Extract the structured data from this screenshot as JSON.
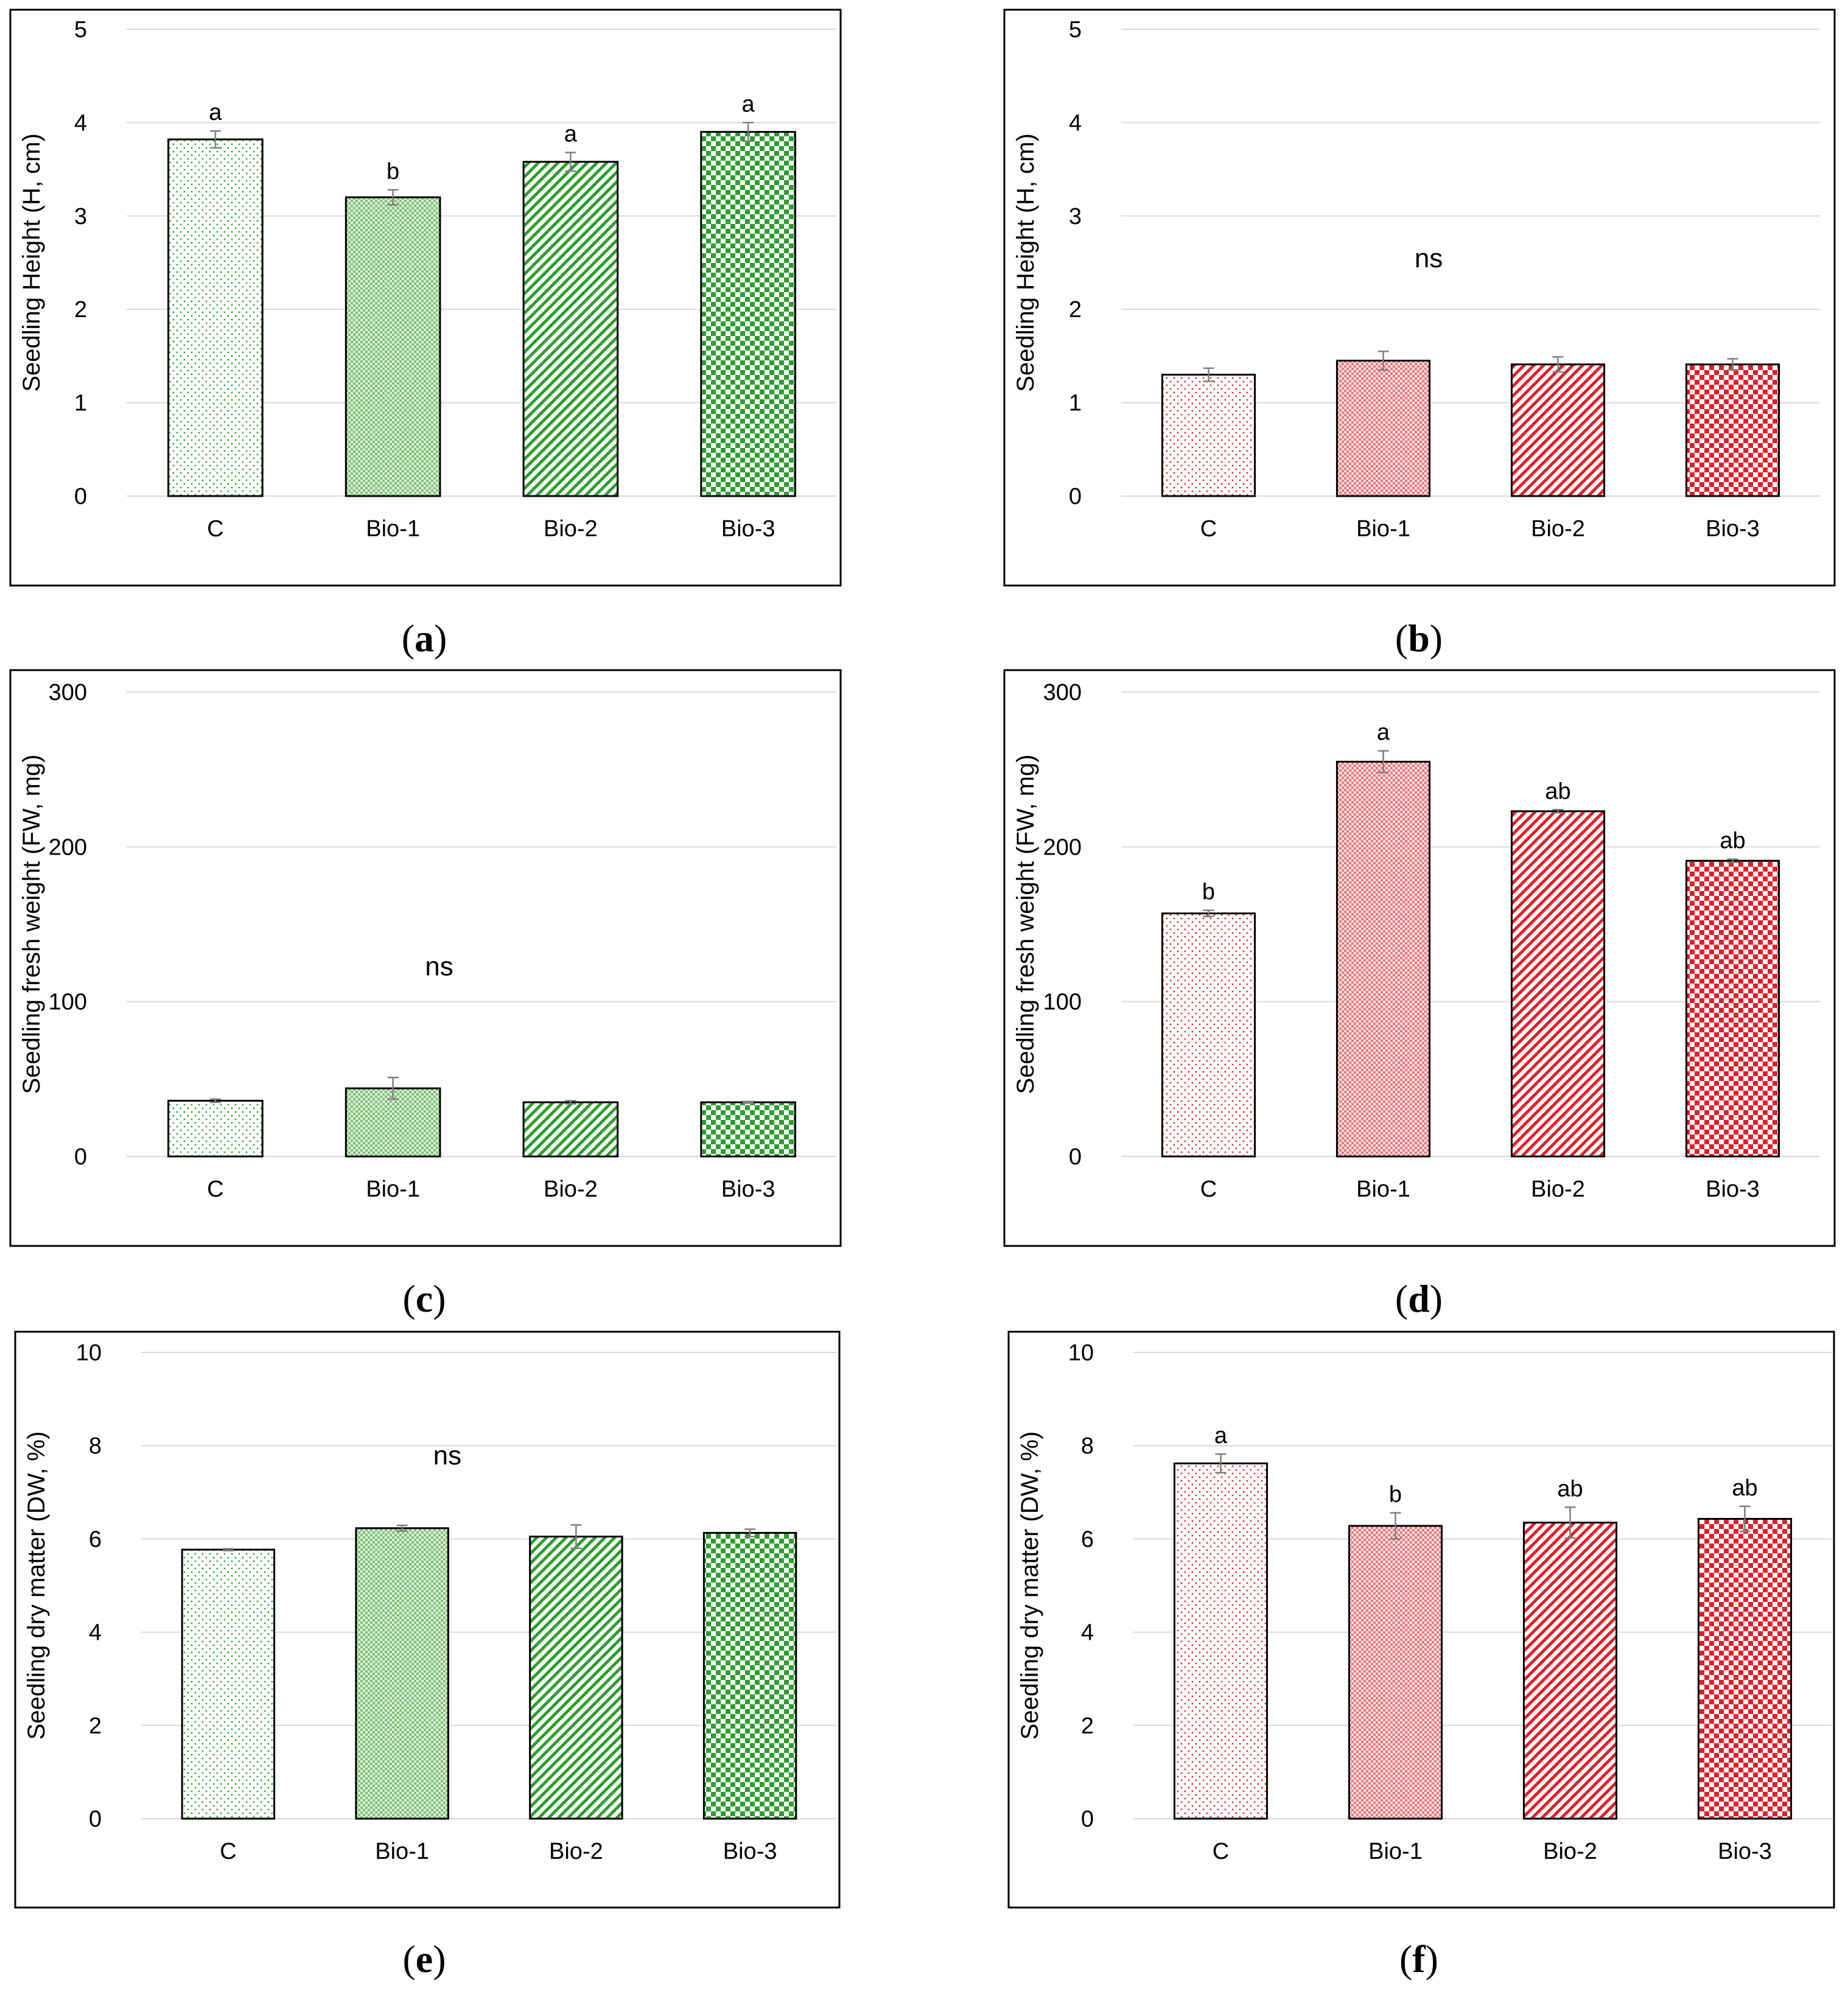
{
  "colors": {
    "green": "#2e9e2e",
    "green_light": "#dff0d8",
    "red": "#e0202a",
    "red_light": "#fbe3e4",
    "grid": "#d9d9d9",
    "frame": "#000000",
    "error_bar": "#7f7f7f"
  },
  "chart_data": [
    {
      "type": "bar",
      "panel": "(a)",
      "panel_letter": "a",
      "color": "green",
      "categories": [
        "C",
        "Bio-1",
        "Bio-2",
        "Bio-3"
      ],
      "values": [
        3.82,
        3.2,
        3.58,
        3.9
      ],
      "errors": [
        0.09,
        0.08,
        0.1,
        0.1
      ],
      "annotations": [
        "a",
        "b",
        "a",
        "a"
      ],
      "ylabel": "Seedling Height (H, cm)",
      "ylim": [
        0,
        5
      ],
      "yticks": [
        0,
        1,
        2,
        3,
        4,
        5
      ],
      "ytick_labels": [
        "0",
        "1",
        "2",
        "3",
        "4",
        "5"
      ],
      "grid": true
    },
    {
      "type": "bar",
      "panel": "(b)",
      "panel_letter": "b",
      "color": "red",
      "categories": [
        "C",
        "Bio-1",
        "Bio-2",
        "Bio-3"
      ],
      "values": [
        1.3,
        1.45,
        1.41,
        1.41
      ],
      "errors": [
        0.07,
        0.1,
        0.08,
        0.06
      ],
      "ns_label": "ns",
      "ns_value": 2.45,
      "ylabel": "Seedling Height (H, cm)",
      "ylim": [
        0,
        5
      ],
      "yticks": [
        0,
        1,
        2,
        3,
        4,
        5
      ],
      "ytick_labels": [
        "0",
        "1",
        "2",
        "3",
        "4",
        "5"
      ],
      "grid": true
    },
    {
      "type": "bar",
      "panel": "(c)",
      "panel_letter": "c",
      "color": "green",
      "categories": [
        "C",
        "Bio-1",
        "Bio-2",
        "Bio-3"
      ],
      "values": [
        36,
        44,
        35,
        35
      ],
      "errors": [
        1,
        7,
        1,
        0.5
      ],
      "ns_label": "ns",
      "ns_value": 117,
      "ylabel": "Seedling fresh weight (FW, mg)",
      "ylim": [
        0,
        300
      ],
      "yticks": [
        0,
        100,
        200,
        300
      ],
      "ytick_labels": [
        "0",
        "100",
        "200",
        "300"
      ],
      "grid": true
    },
    {
      "type": "bar",
      "panel": "(d)",
      "panel_letter": "d",
      "color": "red",
      "categories": [
        "C",
        "Bio-1",
        "Bio-2",
        "Bio-3"
      ],
      "values": [
        157,
        255,
        223,
        191
      ],
      "errors": [
        2,
        7,
        1,
        1
      ],
      "annotations": [
        "b",
        "a",
        "ab",
        "ab"
      ],
      "ylabel": "Seedling fresh weight (FW, mg)",
      "ylim": [
        0,
        300
      ],
      "yticks": [
        0,
        100,
        200,
        300
      ],
      "ytick_labels": [
        "0",
        "100",
        "200",
        "300"
      ],
      "grid": true
    },
    {
      "type": "bar",
      "panel": "(e)",
      "panel_letter": "e",
      "color": "green",
      "categories": [
        "C",
        "Bio-1",
        "Bio-2",
        "Bio-3"
      ],
      "values": [
        5.77,
        6.23,
        6.05,
        6.13
      ],
      "errors": [
        0.02,
        0.06,
        0.25,
        0.08
      ],
      "ns_label": "ns",
      "ns_value": 7.6,
      "ylabel": "Seedling dry matter (DW, %)",
      "ylim": [
        0,
        10
      ],
      "yticks": [
        0,
        2,
        4,
        6,
        8,
        10
      ],
      "ytick_labels": [
        "0",
        "2",
        "4",
        "6",
        "8",
        "10"
      ],
      "grid": true
    },
    {
      "type": "bar",
      "panel": "(f)",
      "panel_letter": "f",
      "color": "red",
      "categories": [
        "C",
        "Bio-1",
        "Bio-2",
        "Bio-3"
      ],
      "values": [
        7.62,
        6.28,
        6.35,
        6.43
      ],
      "errors": [
        0.2,
        0.28,
        0.33,
        0.27
      ],
      "annotations": [
        "a",
        "b",
        "ab",
        "ab"
      ],
      "ylabel": "Seedling dry matter (DW, %)",
      "ylim": [
        0,
        10
      ],
      "yticks": [
        0,
        2,
        4,
        6,
        8,
        10
      ],
      "ytick_labels": [
        "0",
        "2",
        "4",
        "6",
        "8",
        "10"
      ],
      "grid": true
    }
  ]
}
